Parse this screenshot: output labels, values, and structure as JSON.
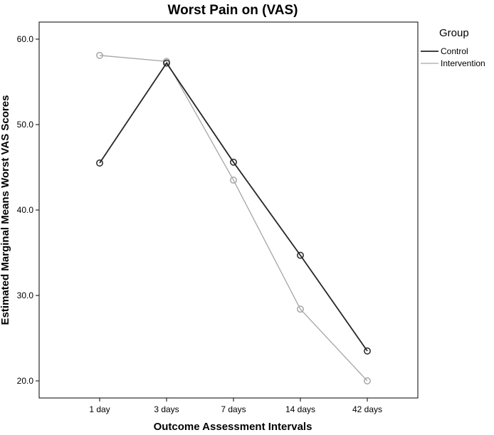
{
  "chart_data": {
    "type": "line",
    "title": "Worst Pain on (VAS)",
    "xlabel": "Outcome Assessment Intervals",
    "ylabel": "Estimated Marginal Means Worst VAS Scores",
    "categories": [
      "1 day",
      "3 days",
      "7 days",
      "14 days",
      "42 days"
    ],
    "ylim": [
      20.0,
      60.0
    ],
    "yticks": [
      "20.0",
      "30.0",
      "40.0",
      "50.0",
      "60.0"
    ],
    "legend_title": "Group",
    "legend_position": "right",
    "grid": false,
    "series": [
      {
        "name": "Control",
        "color": "#262626",
        "marker": "open-circle",
        "values": [
          45.5,
          57.2,
          45.6,
          34.7,
          23.5
        ]
      },
      {
        "name": "Intervention",
        "color": "#a6a6a6",
        "marker": "open-circle",
        "values": [
          58.1,
          57.4,
          43.5,
          28.4,
          20.0
        ]
      }
    ]
  }
}
